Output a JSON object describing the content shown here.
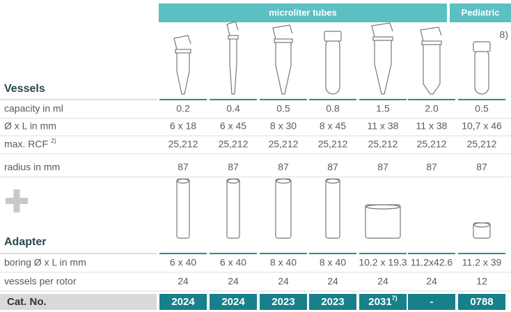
{
  "header": {
    "groups": [
      {
        "label": "microliter tubes"
      },
      {
        "label": "Pediatric",
        "note": "8)"
      }
    ]
  },
  "vessels": {
    "title": "Vessels",
    "rows": [
      {
        "label": "capacity in ml",
        "cells": [
          "0.2",
          "0.4",
          "0.5",
          "0.8",
          "1.5",
          "2.0",
          "0.5"
        ]
      },
      {
        "label": "Ø x L in mm",
        "cells": [
          "6 x 18",
          "6 x 45",
          "8 x 30",
          "8 x 45",
          "11 x 38",
          "11 x 38",
          "10,7 x 46"
        ]
      },
      {
        "label": "max. RCF",
        "note": "2)",
        "cells": [
          "25,212",
          "25,212",
          "25,212",
          "25,212",
          "25,212",
          "25,212",
          "25,212"
        ]
      },
      {
        "label": "radius in mm",
        "cells": [
          "87",
          "87",
          "87",
          "87",
          "87",
          "87",
          "87"
        ]
      }
    ]
  },
  "adapter": {
    "title": "Adapter",
    "rows": [
      {
        "label": "boring Ø x L in mm",
        "cells": [
          "6 x 40",
          "6 x 40",
          "8 x 40",
          "8 x 40",
          "10.2 x 19.3",
          "11.2x42.6",
          "11.2 x 39"
        ]
      },
      {
        "label": "vessels per rotor",
        "cells": [
          "24",
          "24",
          "24",
          "24",
          "24",
          "24",
          "12"
        ]
      }
    ]
  },
  "cat_no": {
    "label": "Cat. No.",
    "cells": [
      {
        "text": "2024"
      },
      {
        "text": "2024"
      },
      {
        "text": "2023"
      },
      {
        "text": "2023"
      },
      {
        "text": "2031",
        "note": "7)"
      },
      {
        "text": "-"
      },
      {
        "text": "0788"
      }
    ]
  }
}
